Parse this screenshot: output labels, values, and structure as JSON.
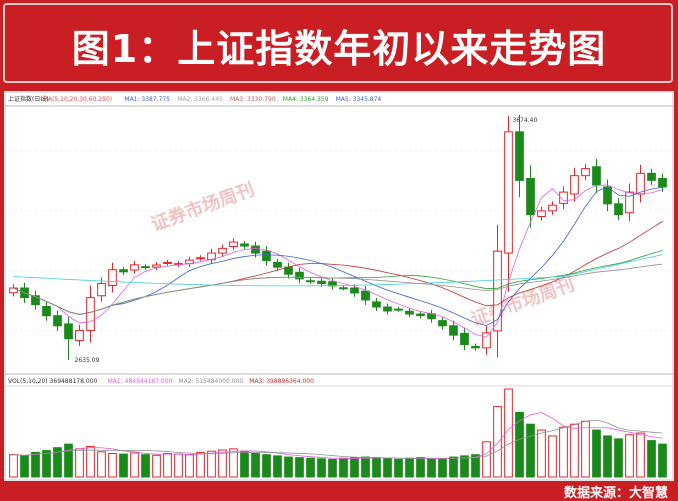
{
  "header": {
    "title": "图1：上证指数年初以来走势图"
  },
  "footer": {
    "source": "数据来源：大智慧"
  },
  "watermark": "证券市场周刊",
  "chart_data": {
    "type": "candlestick",
    "title": "上证指数年初以来走势图",
    "legend_price": [
      "上证指数(日线)",
      "MA(5,10,20,30,60,250)",
      "MA1: 3387.775",
      "MA2: 3366.445",
      "MA3: 3330.790",
      "MA4: 3364.359",
      "MA5: 3345.874"
    ],
    "legend_volume": [
      "VOL(5,10,20) 369488178.000",
      "MA1: 484544187.000",
      "MA2: 515484000.000",
      "MA3: 398896364.000"
    ],
    "low_label": "2635.09",
    "high_label": "3674.40",
    "ylim": [
      2600,
      3700
    ],
    "closes": [
      2941,
      2900,
      2870,
      2823,
      2780,
      2725,
      2760,
      2900,
      2960,
      3019,
      3010,
      3040,
      3030,
      3039,
      3050,
      3045,
      3060,
      3070,
      3090,
      3110,
      3137,
      3120,
      3090,
      3058,
      3030,
      3000,
      2980,
      2970,
      2960,
      2950,
      2941,
      2920,
      2890,
      2860,
      2843,
      2850,
      2830,
      2823,
      2810,
      2780,
      2740,
      2700,
      2686,
      2750,
      3098,
      3607,
      3400,
      3254,
      3270,
      3294,
      3350,
      3420,
      3450,
      3380,
      3300,
      3254,
      3350,
      3430,
      3400,
      3372
    ],
    "volumes": [
      380,
      360,
      420,
      450,
      500,
      560,
      480,
      520,
      430,
      400,
      390,
      410,
      380,
      370,
      400,
      390,
      380,
      420,
      440,
      460,
      480,
      430,
      400,
      380,
      360,
      340,
      330,
      320,
      310,
      300,
      320,
      330,
      340,
      330,
      310,
      300,
      320,
      330,
      310,
      300,
      340,
      360,
      380,
      600,
      1200,
      1500,
      1100,
      900,
      800,
      700,
      850,
      900,
      950,
      800,
      700,
      650,
      720,
      750,
      620,
      560
    ],
    "colors": {
      "up": "#e8242a",
      "down": "#1a8a1a",
      "ma5": "#e060e0",
      "ma10": "#4060d0",
      "ma20": "#c03030",
      "ma30": "#30a030",
      "ma60": "#909090",
      "ma250": "#40d0e0"
    }
  }
}
